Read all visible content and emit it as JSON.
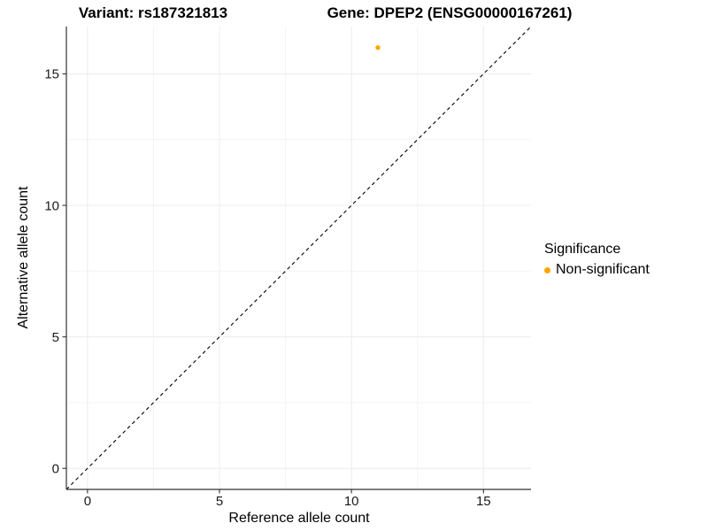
{
  "chart_data": {
    "type": "scatter",
    "title_left": "Variant: rs187321813",
    "title_right": "Gene: DPEP2 (ENSG00000167261)",
    "xlabel": "Reference allele count",
    "ylabel": "Alternative allele count",
    "x_ticks": [
      0,
      5,
      10,
      15
    ],
    "y_ticks": [
      0,
      5,
      10,
      15
    ],
    "xlim": [
      -0.8,
      16.8
    ],
    "ylim": [
      -0.8,
      16.8
    ],
    "grid": "major and minor gridlines, light gray on white",
    "identity_line": {
      "style": "dashed",
      "color": "#000000",
      "from": [
        -0.8,
        -0.8
      ],
      "to": [
        16.8,
        16.8
      ]
    },
    "series": [
      {
        "name": "Non-significant",
        "color": "#FFA500",
        "points": [
          {
            "x": 11,
            "y": 16
          }
        ]
      }
    ],
    "legend": {
      "title": "Significance",
      "position": "right",
      "entries": [
        {
          "label": "Non-significant",
          "color": "#FFA500"
        }
      ]
    }
  }
}
